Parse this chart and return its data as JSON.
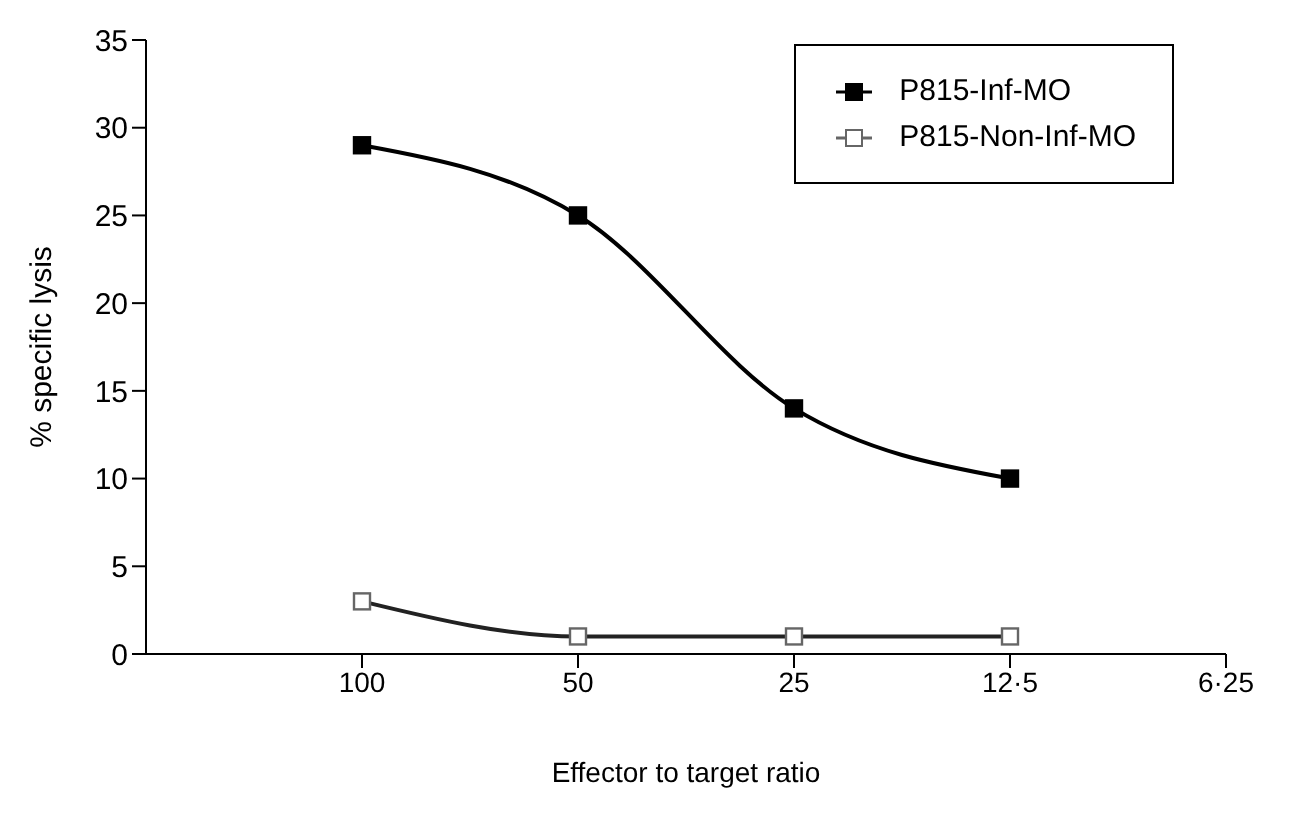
{
  "chart_data": {
    "type": "line",
    "xlabel": "Effector to target ratio",
    "ylabel": "% specific lysis",
    "categories": [
      "100",
      "50",
      "25",
      "12·5",
      "6·25"
    ],
    "series": [
      {
        "name": "P815-Inf-MO",
        "color": "#000000",
        "values": [
          29,
          25,
          14,
          10,
          null
        ]
      },
      {
        "name": "P815-Non-Inf-MO",
        "color": "#666666",
        "values": [
          3,
          1,
          1,
          1,
          null
        ]
      }
    ],
    "ylim": [
      0,
      35
    ],
    "yticks": [
      0,
      5,
      10,
      15,
      20,
      25,
      30,
      35
    ],
    "grid": false,
    "legend": "top right",
    "marker": "square",
    "line_style": "solid"
  }
}
